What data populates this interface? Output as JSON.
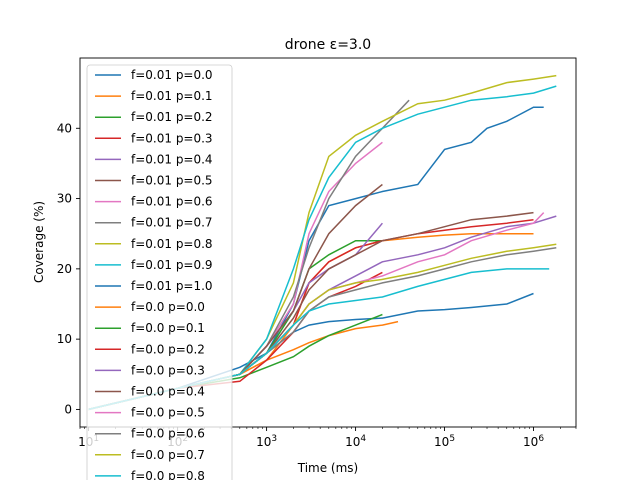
{
  "chart_data": {
    "type": "line",
    "title": "drone ε=3.0",
    "xlabel": "Time (ms)",
    "ylabel": "Coverage (%)",
    "xscale": "log",
    "xlim": [
      8,
      3000000
    ],
    "ylim": [
      -2.5,
      50
    ],
    "xticks": [
      {
        "value": 10,
        "base": "10",
        "exp": "1"
      },
      {
        "value": 100,
        "base": "10",
        "exp": "2"
      },
      {
        "value": 1000,
        "base": "10",
        "exp": "3"
      },
      {
        "value": 10000,
        "base": "10",
        "exp": "4"
      },
      {
        "value": 100000,
        "base": "10",
        "exp": "5"
      },
      {
        "value": 1000000,
        "base": "10",
        "exp": "6"
      }
    ],
    "yticks": [
      0,
      10,
      20,
      30,
      40
    ],
    "grid": false,
    "legend_position": "upper left",
    "series": [
      {
        "name": "f=0.01 p=0.0",
        "color": "#1f77b4",
        "x": [
          10,
          100,
          500,
          1000,
          2000,
          3000,
          5000,
          10000,
          20000,
          50000,
          100000,
          200000,
          300000,
          500000,
          1000000,
          1300000
        ],
        "y": [
          0,
          3,
          6,
          8,
          15,
          24,
          29,
          30,
          31,
          32,
          37,
          38,
          40,
          41,
          43,
          43
        ]
      },
      {
        "name": "f=0.01 p=0.1",
        "color": "#ff7f0e",
        "x": [
          10,
          100,
          500,
          1000,
          2000,
          3000,
          5000,
          10000,
          20000,
          50000,
          100000,
          200000,
          500000,
          1000000
        ],
        "y": [
          0,
          3,
          5,
          7,
          12,
          18,
          21,
          23,
          24,
          24.5,
          24.8,
          25,
          25,
          25
        ]
      },
      {
        "name": "f=0.01 p=0.2",
        "color": "#2ca02c",
        "x": [
          10,
          100,
          500,
          1000,
          2000,
          3000,
          5000,
          10000,
          20000
        ],
        "y": [
          0,
          3,
          5,
          8,
          14,
          20,
          22,
          24,
          24
        ]
      },
      {
        "name": "f=0.01 p=0.3",
        "color": "#d62728",
        "x": [
          10,
          100,
          500,
          1000,
          2000,
          3000,
          5000,
          10000,
          20000,
          50000,
          100000,
          200000,
          500000,
          1000000
        ],
        "y": [
          0,
          3,
          5,
          8,
          12,
          18,
          21,
          23,
          24,
          25,
          25.5,
          26,
          26.5,
          27
        ]
      },
      {
        "name": "f=0.01 p=0.4",
        "color": "#9467bd",
        "x": [
          10,
          100,
          500,
          1000,
          2000,
          3000,
          5000,
          10000,
          20000
        ],
        "y": [
          0,
          3,
          5,
          9,
          14,
          18,
          20,
          22,
          26.5
        ]
      },
      {
        "name": "f=0.01 p=0.5",
        "color": "#8c564b",
        "x": [
          10,
          100,
          500,
          1000,
          2000,
          3000,
          5000,
          10000,
          20000,
          50000,
          100000,
          200000,
          500000,
          1000000
        ],
        "y": [
          0,
          3,
          5,
          8,
          13,
          17,
          20,
          22,
          24,
          25,
          26,
          27,
          27.5,
          28
        ]
      },
      {
        "name": "f=0.01 p=0.6",
        "color": "#e377c2",
        "x": [
          10,
          100,
          500,
          1000,
          2000,
          3000,
          5000,
          10000,
          20000
        ],
        "y": [
          0,
          3,
          5,
          9,
          15,
          25,
          31,
          35,
          38
        ]
      },
      {
        "name": "f=0.01 p=0.7",
        "color": "#7f7f7f",
        "x": [
          10,
          100,
          500,
          1000,
          2000,
          3000,
          5000,
          10000,
          20000,
          40000
        ],
        "y": [
          0,
          3,
          5,
          9,
          16,
          23,
          30,
          36,
          40,
          44
        ]
      },
      {
        "name": "f=0.01 p=0.8",
        "color": "#bcbd22",
        "x": [
          10,
          100,
          500,
          1000,
          2000,
          3000,
          5000,
          10000,
          20000,
          50000,
          100000,
          200000,
          500000,
          1000000,
          1800000
        ],
        "y": [
          0,
          3,
          5,
          10,
          18,
          28,
          36,
          39,
          41,
          43.5,
          44,
          45,
          46.5,
          47,
          47.5
        ]
      },
      {
        "name": "f=0.01 p=0.9",
        "color": "#17becf",
        "x": [
          10,
          100,
          500,
          1000,
          2000,
          3000,
          5000,
          10000,
          20000,
          50000,
          100000,
          200000,
          500000,
          1000000,
          1800000
        ],
        "y": [
          0,
          3,
          5,
          10,
          20,
          27,
          33,
          38,
          40,
          42,
          43,
          44,
          44.5,
          45,
          46
        ]
      },
      {
        "name": "f=0.01 p=1.0",
        "color": "#1f77b4",
        "x": [
          10,
          100,
          500,
          1000,
          2000,
          3000,
          5000,
          10000,
          20000,
          50000,
          100000,
          200000,
          500000,
          1000000
        ],
        "y": [
          0,
          3,
          5,
          8,
          11,
          12,
          12.5,
          12.8,
          13,
          14,
          14.2,
          14.5,
          15,
          16.5
        ]
      },
      {
        "name": "f=0.0 p=0.0",
        "color": "#ff7f0e",
        "x": [
          10,
          100,
          500,
          1000,
          2000,
          3000,
          5000,
          10000,
          20000,
          30000
        ],
        "y": [
          0,
          3,
          5,
          7,
          8.5,
          9.5,
          10.5,
          11.5,
          12,
          12.5
        ]
      },
      {
        "name": "f=0.0 p=0.1",
        "color": "#2ca02c",
        "x": [
          10,
          100,
          500,
          1000,
          2000,
          3000,
          5000,
          10000,
          20000
        ],
        "y": [
          0,
          3,
          4.5,
          6,
          7.5,
          9,
          10.5,
          12,
          13.5
        ]
      },
      {
        "name": "f=0.0 p=0.2",
        "color": "#d62728",
        "x": [
          10,
          100,
          500,
          1000,
          2000,
          3000,
          5000,
          10000,
          20000
        ],
        "y": [
          0,
          3,
          4,
          7,
          11,
          14,
          16,
          17.5,
          19.5
        ]
      },
      {
        "name": "f=0.0 p=0.3",
        "color": "#9467bd",
        "x": [
          10,
          100,
          500,
          1000,
          2000,
          3000,
          5000,
          10000,
          20000,
          50000,
          100000,
          200000,
          500000,
          1000000,
          1800000
        ],
        "y": [
          0,
          3,
          5,
          8,
          12,
          15,
          17,
          19,
          21,
          22,
          23,
          24.5,
          26,
          26.5,
          27.5
        ]
      },
      {
        "name": "f=0.0 p=0.4",
        "color": "#8c564b",
        "x": [
          10,
          100,
          500,
          1000,
          2000,
          3000,
          5000,
          10000,
          20000
        ],
        "y": [
          0,
          3,
          5,
          9,
          14,
          20,
          25,
          29,
          32
        ]
      },
      {
        "name": "f=0.0 p=0.5",
        "color": "#e377c2",
        "x": [
          10,
          100,
          500,
          1000,
          2000,
          3000,
          5000,
          10000,
          20000,
          50000,
          100000,
          200000,
          500000,
          1000000,
          1300000
        ],
        "y": [
          0,
          3,
          5,
          8,
          12,
          15,
          17,
          18,
          19,
          21,
          22,
          24,
          25.5,
          26.5,
          28
        ]
      },
      {
        "name": "f=0.0 p=0.6",
        "color": "#7f7f7f",
        "x": [
          10,
          100,
          500,
          1000,
          2000,
          3000,
          5000,
          10000,
          20000,
          50000,
          100000,
          200000,
          500000,
          1000000,
          1800000
        ],
        "y": [
          0,
          3,
          5,
          8,
          11,
          14,
          16,
          17,
          18,
          19,
          20,
          21,
          22,
          22.5,
          23
        ]
      },
      {
        "name": "f=0.0 p=0.7",
        "color": "#bcbd22",
        "x": [
          10,
          100,
          500,
          1000,
          2000,
          3000,
          5000,
          10000,
          20000,
          50000,
          100000,
          200000,
          500000,
          1000000,
          1800000
        ],
        "y": [
          0,
          3,
          5,
          8,
          12,
          15,
          17,
          18,
          18.5,
          19.5,
          20.5,
          21.5,
          22.5,
          23,
          23.5
        ]
      },
      {
        "name": "f=0.0 p=0.8",
        "color": "#17becf",
        "x": [
          10,
          100,
          500,
          1000,
          2000,
          3000,
          5000,
          10000,
          20000,
          50000,
          100000,
          200000,
          500000,
          1000000,
          1500000
        ],
        "y": [
          0,
          3,
          5,
          8,
          12,
          14,
          15,
          15.5,
          16,
          17.5,
          18.5,
          19.5,
          20,
          20,
          20
        ]
      }
    ]
  }
}
